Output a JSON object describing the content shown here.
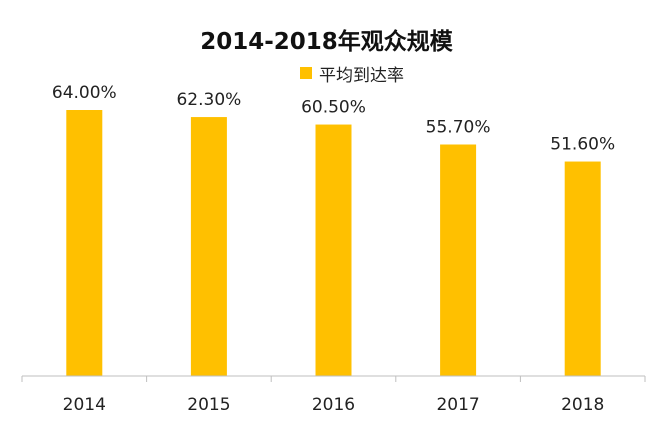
{
  "chart_data": {
    "type": "bar",
    "title": "2014-2018年观众规模",
    "categories": [
      "2014",
      "2015",
      "2016",
      "2017",
      "2018"
    ],
    "series": [
      {
        "name": "平均到达率",
        "values": [
          64.0,
          62.3,
          60.5,
          55.7,
          51.6
        ],
        "labels": [
          "64.00%",
          "62.30%",
          "60.50%",
          "55.70%",
          "51.60%"
        ],
        "color": "#FFC000"
      }
    ],
    "xlabel": "",
    "ylabel": "",
    "ylim": [
      0,
      64.0
    ],
    "grid": false,
    "legend_position": "top-center",
    "axis_color": "#BFBFBF"
  }
}
